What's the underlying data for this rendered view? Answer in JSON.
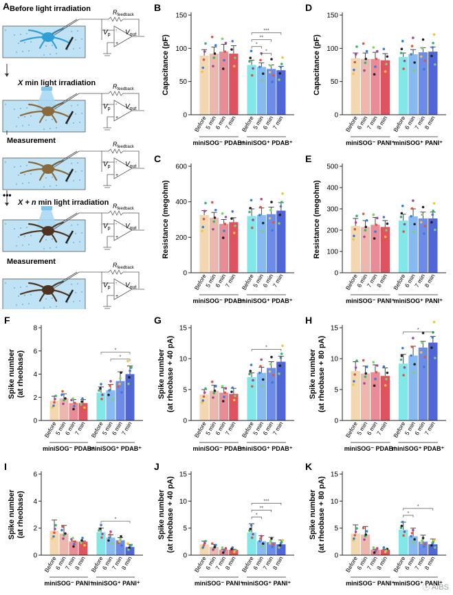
{
  "schematic": {
    "panel_letter": "A",
    "steps": [
      {
        "label": "Before light irradiation",
        "cell_color": "#2f9fd8",
        "light": false
      },
      {
        "label_parts": [
          "X",
          " min light irradiation"
        ],
        "cell_color": "#8a6a3a",
        "light": true
      },
      {
        "label": "Measurement",
        "cell_color": "#8a6a3a",
        "light": false
      },
      {
        "label_parts": [
          "X + n",
          " min light irradiation"
        ],
        "cell_color": "#4e3420",
        "light": true
      },
      {
        "label": "Measurement",
        "cell_color": "#4e3420",
        "light": false
      }
    ],
    "ellipsis": "•••",
    "circuit": {
      "r": "R",
      "r_sub": "feedback",
      "v": "V",
      "v_sub": "p",
      "vout": "V",
      "vout_sub": "out",
      "minus": "-",
      "plus": "+"
    }
  },
  "colors": {
    "before": "#f2d3a8",
    "pdab_neg": [
      "#f2d3a8",
      "#eab0a4",
      "#e67f8c",
      "#d9404f"
    ],
    "pdab_pos": [
      "#76e4e6",
      "#7ab3ee",
      "#5c7fe6",
      "#3d55d1"
    ],
    "pani_neg": [
      "#f2d3a8",
      "#eab0a4",
      "#e67f8c",
      "#d9404f"
    ],
    "pani_pos": [
      "#76e4e6",
      "#7ab3ee",
      "#5c7fe6",
      "#3d55d1"
    ],
    "error": "#444444",
    "dots": [
      "#f0c43c",
      "#3bb26b",
      "#a8459a",
      "#e0553e",
      "#3a7bd5",
      "#222222",
      "#7bd26b"
    ]
  },
  "chart_data": [
    {
      "id": "B",
      "type": "bar",
      "ylabel": "Capacitance (pF)",
      "ylim": [
        0,
        150
      ],
      "yticks": [
        0,
        50,
        100,
        150
      ],
      "groups": [
        {
          "label": "miniSOG⁻ PDAB⁺",
          "categories": [
            "Before",
            "5 min",
            "6 min",
            "7 min"
          ],
          "values": [
            89,
            92,
            95,
            92
          ],
          "errors": [
            9,
            10,
            11,
            12
          ],
          "palette": "pdab_neg"
        },
        {
          "label": "miniSOG⁺ PDAB⁺",
          "categories": [
            "Before",
            "5 min",
            "6 min",
            "7 min"
          ],
          "values": [
            75,
            72,
            69,
            67
          ],
          "errors": [
            7,
            6,
            6,
            6
          ],
          "palette": "pdab_pos"
        }
      ],
      "sig": [
        {
          "g": 1,
          "from": 0,
          "to": 3,
          "text": "***"
        },
        {
          "g": 1,
          "from": 0,
          "to": 2,
          "text": "**"
        },
        {
          "g": 1,
          "from": 0,
          "to": 1,
          "text": "*"
        },
        {
          "g": 1,
          "from": 1,
          "to": 2,
          "text": "*"
        }
      ]
    },
    {
      "id": "D",
      "type": "bar",
      "ylabel": "Capacitance (pF)",
      "ylim": [
        0,
        150
      ],
      "yticks": [
        0,
        50,
        100,
        150
      ],
      "groups": [
        {
          "label": "miniSOG⁻ PANI⁺",
          "categories": [
            "Before",
            "6 min",
            "7 min",
            "8 min"
          ],
          "values": [
            85,
            84,
            84,
            82
          ],
          "errors": [
            8,
            9,
            10,
            10
          ],
          "palette": "pani_neg"
        },
        {
          "label": "miniSOG⁺ PANI⁺",
          "categories": [
            "Before",
            "6 min",
            "7 min",
            "8 min"
          ],
          "values": [
            87,
            91,
            94,
            95
          ],
          "errors": [
            6,
            7,
            7,
            7
          ],
          "palette": "pani_pos"
        }
      ],
      "sig": []
    },
    {
      "id": "C",
      "type": "bar",
      "ylabel": "Resistance (megohm)",
      "ylim": [
        0,
        600
      ],
      "yticks": [
        0,
        200,
        400,
        600
      ],
      "groups": [
        {
          "label": "miniSOG⁻ PDAB⁺",
          "categories": [
            "Before",
            "5 min",
            "6 min",
            "7 min"
          ],
          "values": [
            325,
            310,
            275,
            285
          ],
          "errors": [
            25,
            30,
            25,
            25
          ],
          "palette": "pdab_neg"
        },
        {
          "label": "miniSOG⁺ PDAB⁺",
          "categories": [
            "Before",
            "5 min",
            "6 min",
            "7 min"
          ],
          "values": [
            320,
            325,
            330,
            350
          ],
          "errors": [
            40,
            40,
            40,
            45
          ],
          "palette": "pdab_pos"
        }
      ],
      "sig": []
    },
    {
      "id": "E",
      "type": "bar",
      "ylabel": "Resistance (megohm)",
      "ylim": [
        0,
        500
      ],
      "yticks": [
        0,
        100,
        200,
        300,
        400,
        500
      ],
      "groups": [
        {
          "label": "miniSOG⁻ PANI⁺",
          "categories": [
            "Before",
            "6 min",
            "7 min",
            "8 min"
          ],
          "values": [
            220,
            215,
            225,
            215
          ],
          "errors": [
            35,
            30,
            35,
            30
          ],
          "palette": "pani_neg"
        },
        {
          "label": "miniSOG⁺ PANI⁺",
          "categories": [
            "Before",
            "6 min",
            "7 min",
            "8 min"
          ],
          "values": [
            245,
            265,
            255,
            255
          ],
          "errors": [
            30,
            35,
            30,
            30
          ],
          "palette": "pani_pos"
        }
      ],
      "sig": []
    },
    {
      "id": "F",
      "type": "bar",
      "ylabel": "Spike number\n(at rheobase)",
      "ylim": [
        0,
        8
      ],
      "yticks": [
        0,
        2,
        4,
        6,
        8
      ],
      "groups": [
        {
          "label": "miniSOG⁻ PDAB⁺",
          "categories": [
            "Before",
            "5 min",
            "6 min",
            "7 min"
          ],
          "values": [
            1.7,
            1.9,
            1.5,
            1.5
          ],
          "errors": [
            0.4,
            0.4,
            0.3,
            0.3
          ],
          "palette": "pdab_neg"
        },
        {
          "label": "miniSOG⁺ PDAB⁺",
          "categories": [
            "Before",
            "5 min",
            "6 min",
            "7 min"
          ],
          "values": [
            2.4,
            2.6,
            3.4,
            4.0
          ],
          "errors": [
            0.5,
            0.5,
            0.8,
            0.7
          ],
          "palette": "pdab_pos"
        }
      ],
      "sig": [
        {
          "g": 1,
          "from": 0,
          "to": 3,
          "text": "*"
        },
        {
          "g": 1,
          "from": 1,
          "to": 3,
          "text": "*"
        }
      ]
    },
    {
      "id": "G",
      "type": "bar",
      "ylabel": "Spike number\n(at rheobase + 40 pA)",
      "ylim": [
        0,
        15
      ],
      "yticks": [
        0,
        5,
        10,
        15
      ],
      "groups": [
        {
          "label": "miniSOG⁻ PDAB⁺",
          "categories": [
            "Before",
            "5 min",
            "6 min",
            "7 min"
          ],
          "values": [
            4.2,
            4.8,
            4.5,
            4.3
          ],
          "errors": [
            0.8,
            0.9,
            0.8,
            0.9
          ],
          "palette": "pdab_neg"
        },
        {
          "label": "miniSOG⁺ PDAB⁺",
          "categories": [
            "Before",
            "5 min",
            "6 min",
            "7 min"
          ],
          "values": [
            7.0,
            7.7,
            8.5,
            9.5
          ],
          "errors": [
            0.7,
            0.9,
            1.0,
            0.9
          ],
          "palette": "pdab_pos"
        }
      ],
      "sig": [
        {
          "g": 1,
          "from": 0,
          "to": 3,
          "text": "*"
        }
      ]
    },
    {
      "id": "H",
      "type": "bar",
      "ylabel": "Spike number\n(at rheobase + 80 pA)",
      "ylim": [
        0,
        15
      ],
      "yticks": [
        0,
        5,
        10,
        15
      ],
      "groups": [
        {
          "label": "miniSOG⁻ PDAB⁺",
          "categories": [
            "Before",
            "5 min",
            "6 min",
            "7 min"
          ],
          "values": [
            8.0,
            7.6,
            7.8,
            7.2
          ],
          "errors": [
            1.5,
            1.2,
            1.2,
            1.3
          ],
          "palette": "pdab_neg"
        },
        {
          "label": "miniSOG⁺ PDAB⁺",
          "categories": [
            "Before",
            "5 min",
            "6 min",
            "7 min"
          ],
          "values": [
            9.2,
            10.5,
            11.8,
            12.6
          ],
          "errors": [
            1.5,
            1.5,
            1.0,
            1.0
          ],
          "palette": "pdab_pos"
        }
      ],
      "sig": [
        {
          "g": 1,
          "from": 0,
          "to": 3,
          "text": "*"
        }
      ]
    },
    {
      "id": "I",
      "type": "bar",
      "ylabel": "Spike number\n(at rheobase)",
      "ylim": [
        0,
        6
      ],
      "yticks": [
        0,
        2,
        4,
        6
      ],
      "groups": [
        {
          "label": "miniSOG⁻ PANI⁺",
          "categories": [
            "Before",
            "6 min",
            "7 min",
            "8 min"
          ],
          "values": [
            1.8,
            1.6,
            1.0,
            1.0
          ],
          "errors": [
            0.8,
            0.6,
            0.05,
            0.05
          ],
          "palette": "pani_neg"
        },
        {
          "label": "miniSOG⁺ PANI⁺",
          "categories": [
            "Before",
            "6 min",
            "7 min",
            "8 min"
          ],
          "values": [
            1.7,
            1.3,
            1.1,
            0.6
          ],
          "errors": [
            0.3,
            0.2,
            0.2,
            0.2
          ],
          "palette": "pani_pos"
        }
      ],
      "sig": [
        {
          "g": 1,
          "from": 0,
          "to": 3,
          "text": "*"
        }
      ]
    },
    {
      "id": "J",
      "type": "bar",
      "ylabel": "Spike number\n(at rheobase + 40 pA)",
      "ylim": [
        0,
        15
      ],
      "yticks": [
        0,
        5,
        10,
        15
      ],
      "groups": [
        {
          "label": "miniSOG⁻ PANI⁺",
          "categories": [
            "Before",
            "6 min",
            "7 min",
            "8 min"
          ],
          "values": [
            2.0,
            1.5,
            1.0,
            1.0
          ],
          "errors": [
            0.6,
            0.5,
            0.1,
            0.1
          ],
          "palette": "pani_neg"
        },
        {
          "label": "miniSOG⁺ PANI⁺",
          "categories": [
            "Before",
            "6 min",
            "7 min",
            "8 min"
          ],
          "values": [
            4.2,
            2.6,
            2.4,
            2.0
          ],
          "errors": [
            1.6,
            1.0,
            0.9,
            0.8
          ],
          "palette": "pani_pos"
        }
      ],
      "sig": [
        {
          "g": 1,
          "from": 0,
          "to": 3,
          "text": "***"
        },
        {
          "g": 1,
          "from": 0,
          "to": 2,
          "text": "**"
        },
        {
          "g": 1,
          "from": 0,
          "to": 1,
          "text": "*"
        }
      ]
    },
    {
      "id": "K",
      "type": "bar",
      "ylabel": "Spike number\n(at rheobase + 80 pA)",
      "ylim": [
        0,
        15
      ],
      "yticks": [
        0,
        5,
        10,
        15
      ],
      "groups": [
        {
          "label": "miniSOG⁻ PANI⁺",
          "categories": [
            "Before",
            "6 min",
            "7 min",
            "8 min"
          ],
          "values": [
            4.0,
            3.8,
            1.0,
            1.0
          ],
          "errors": [
            1.6,
            1.5,
            0.1,
            0.1
          ],
          "palette": "pani_neg"
        },
        {
          "label": "miniSOG⁺ PANI⁺",
          "categories": [
            "Before",
            "6 min",
            "7 min",
            "8 min"
          ],
          "values": [
            4.7,
            3.5,
            2.5,
            2.0
          ],
          "errors": [
            1.4,
            1.5,
            1.2,
            1.0
          ],
          "palette": "pani_pos"
        }
      ],
      "sig": [
        {
          "g": 1,
          "from": 0,
          "to": 3,
          "text": "*"
        },
        {
          "g": 1,
          "from": 0,
          "to": 1,
          "text": "*"
        }
      ]
    }
  ],
  "watermark": "ⓢ AIBS"
}
